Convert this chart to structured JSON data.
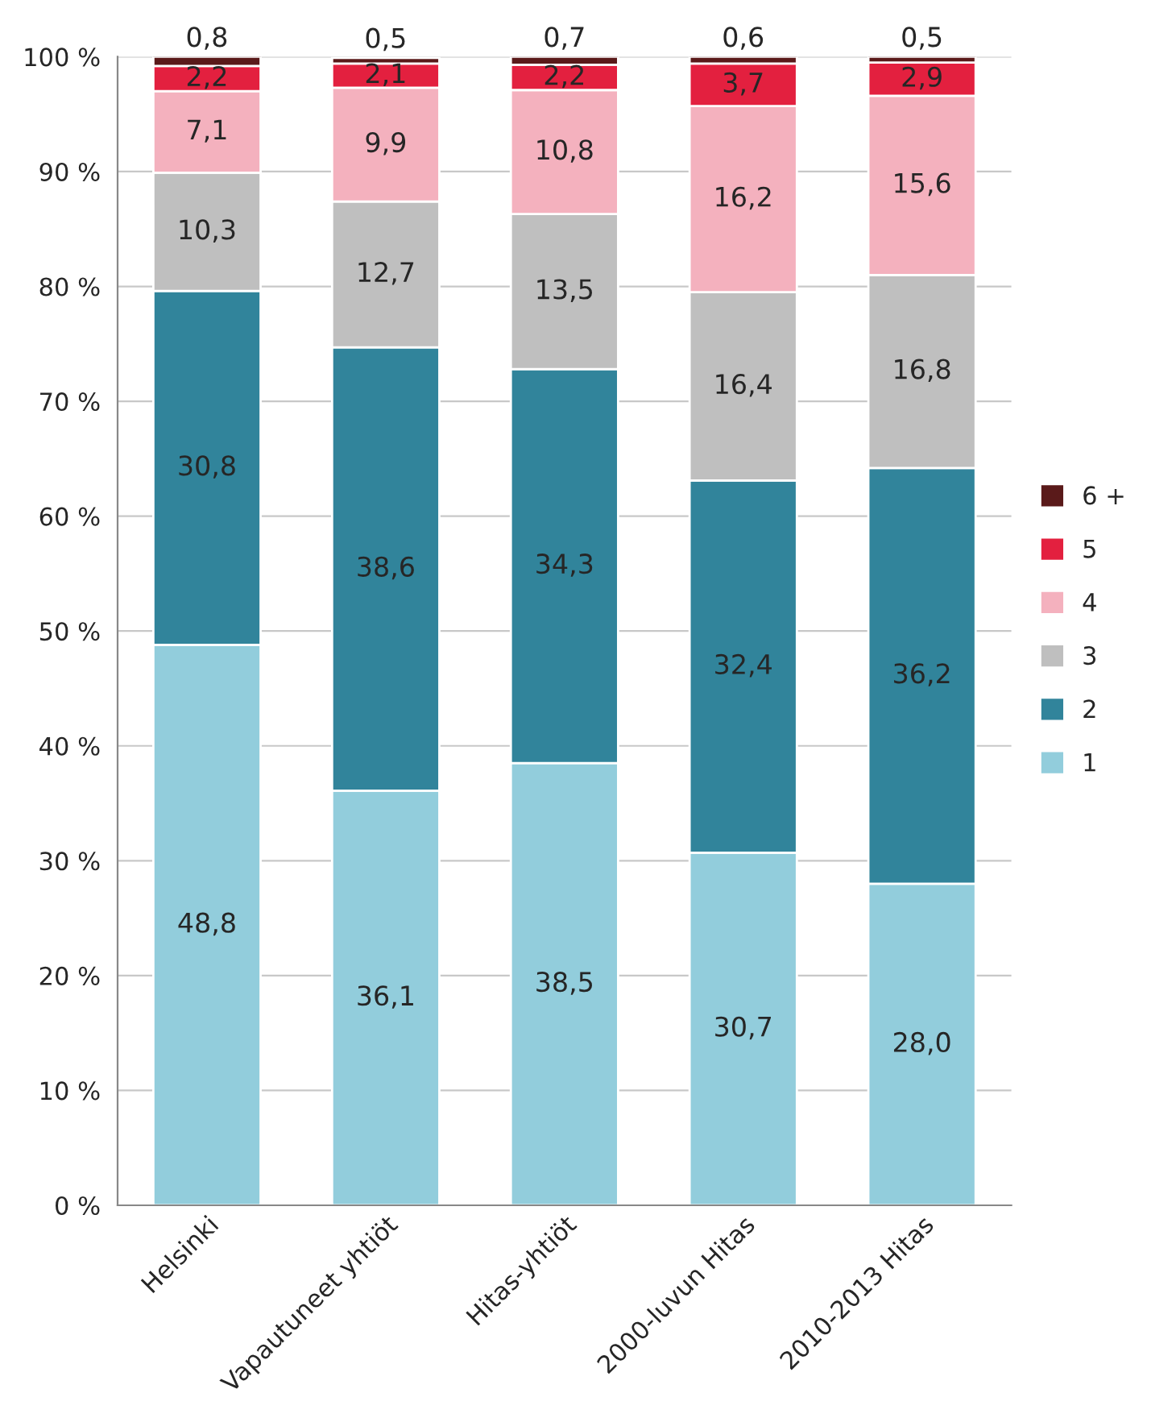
{
  "chart_data": {
    "type": "bar",
    "stacked": true,
    "categories": [
      "Helsinki",
      "Vapautuneet yhtiöt",
      "Hitas-yhtiöt",
      "2000-luvun Hitas",
      "2010-2013 Hitas"
    ],
    "series": [
      {
        "name": "1",
        "color": "#92cddc",
        "values": [
          48.8,
          36.1,
          38.5,
          30.7,
          28.0
        ],
        "value_labels": [
          "48,8",
          "36,1",
          "38,5",
          "30,7",
          "28,0"
        ]
      },
      {
        "name": "2",
        "color": "#31849b",
        "values": [
          30.8,
          38.6,
          34.3,
          32.4,
          36.2
        ],
        "value_labels": [
          "30,8",
          "38,6",
          "34,3",
          "32,4",
          "36,2"
        ]
      },
      {
        "name": "3",
        "color": "#bfbfbf",
        "values": [
          10.3,
          12.7,
          13.5,
          16.4,
          16.8
        ],
        "value_labels": [
          "10,3",
          "12,7",
          "13,5",
          "16,4",
          "16,8"
        ]
      },
      {
        "name": "4",
        "color": "#f4b1be",
        "values": [
          7.1,
          9.9,
          10.8,
          16.2,
          15.6
        ],
        "value_labels": [
          "7,1",
          "9,9",
          "10,8",
          "16,2",
          "15,6"
        ]
      },
      {
        "name": "5",
        "color": "#e3203f",
        "values": [
          2.2,
          2.1,
          2.2,
          3.7,
          2.9
        ],
        "value_labels": [
          "2,2",
          "2,1",
          "2,2",
          "3,7",
          "2,9"
        ]
      },
      {
        "name": "6 +",
        "color": "#5a1a1a",
        "values": [
          0.8,
          0.5,
          0.7,
          0.6,
          0.5
        ],
        "value_labels": [
          "0,8",
          "0,5",
          "0,7",
          "0,6",
          "0,5"
        ]
      }
    ],
    "ylim": [
      0,
      100
    ],
    "yticks": [
      {
        "value": 0,
        "label": "0 %"
      },
      {
        "value": 10,
        "label": "10 %"
      },
      {
        "value": 20,
        "label": "20 %"
      },
      {
        "value": 30,
        "label": "30 %"
      },
      {
        "value": 40,
        "label": "40 %"
      },
      {
        "value": 50,
        "label": "50 %"
      },
      {
        "value": 60,
        "label": "60 %"
      },
      {
        "value": 70,
        "label": "70 %"
      },
      {
        "value": 80,
        "label": "80 %"
      },
      {
        "value": 90,
        "label": "90 %"
      },
      {
        "value": 100,
        "label": "100 %"
      }
    ],
    "grid": "y",
    "legend": "right"
  }
}
